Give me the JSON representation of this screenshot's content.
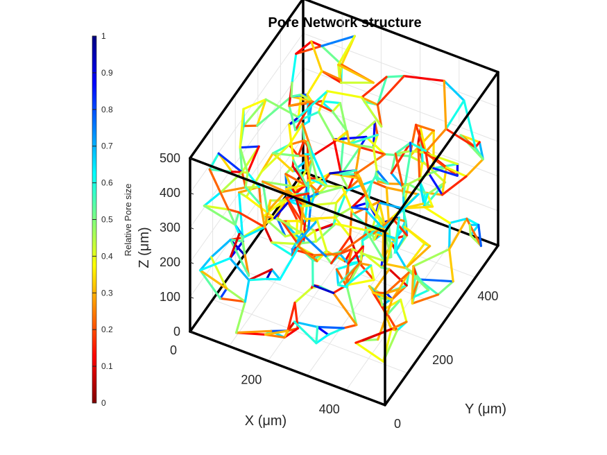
{
  "chart_data": {
    "type": "3d-network",
    "title": "Pore Network structure",
    "x_axis": {
      "label": "X (μm)",
      "range": [
        0,
        500
      ],
      "ticks": [
        "0",
        "200",
        "400"
      ]
    },
    "y_axis": {
      "label": "Y (μm)",
      "range": [
        0,
        500
      ],
      "ticks": [
        "0",
        "200",
        "400"
      ]
    },
    "z_axis": {
      "label": "Z (μm)",
      "range": [
        0,
        500
      ],
      "ticks": [
        "0",
        "100",
        "200",
        "300",
        "400",
        "500"
      ]
    },
    "colorbar": {
      "label": "Relative Pore size",
      "range": [
        0,
        1
      ],
      "ticks": [
        "0",
        "0.1",
        "0.2",
        "0.3",
        "0.4",
        "0.5",
        "0.6",
        "0.7",
        "0.8",
        "0.9",
        "1"
      ],
      "colormap": "jet-reversed",
      "stops": [
        "#800000",
        "#ff0000",
        "#ff8000",
        "#ffff00",
        "#80ff80",
        "#00ffff",
        "#0080ff",
        "#0000ff",
        "#000080"
      ]
    },
    "grid": true,
    "box": true,
    "network": {
      "node_count": 320,
      "neighbor_links": 3,
      "seed": 7
    }
  }
}
